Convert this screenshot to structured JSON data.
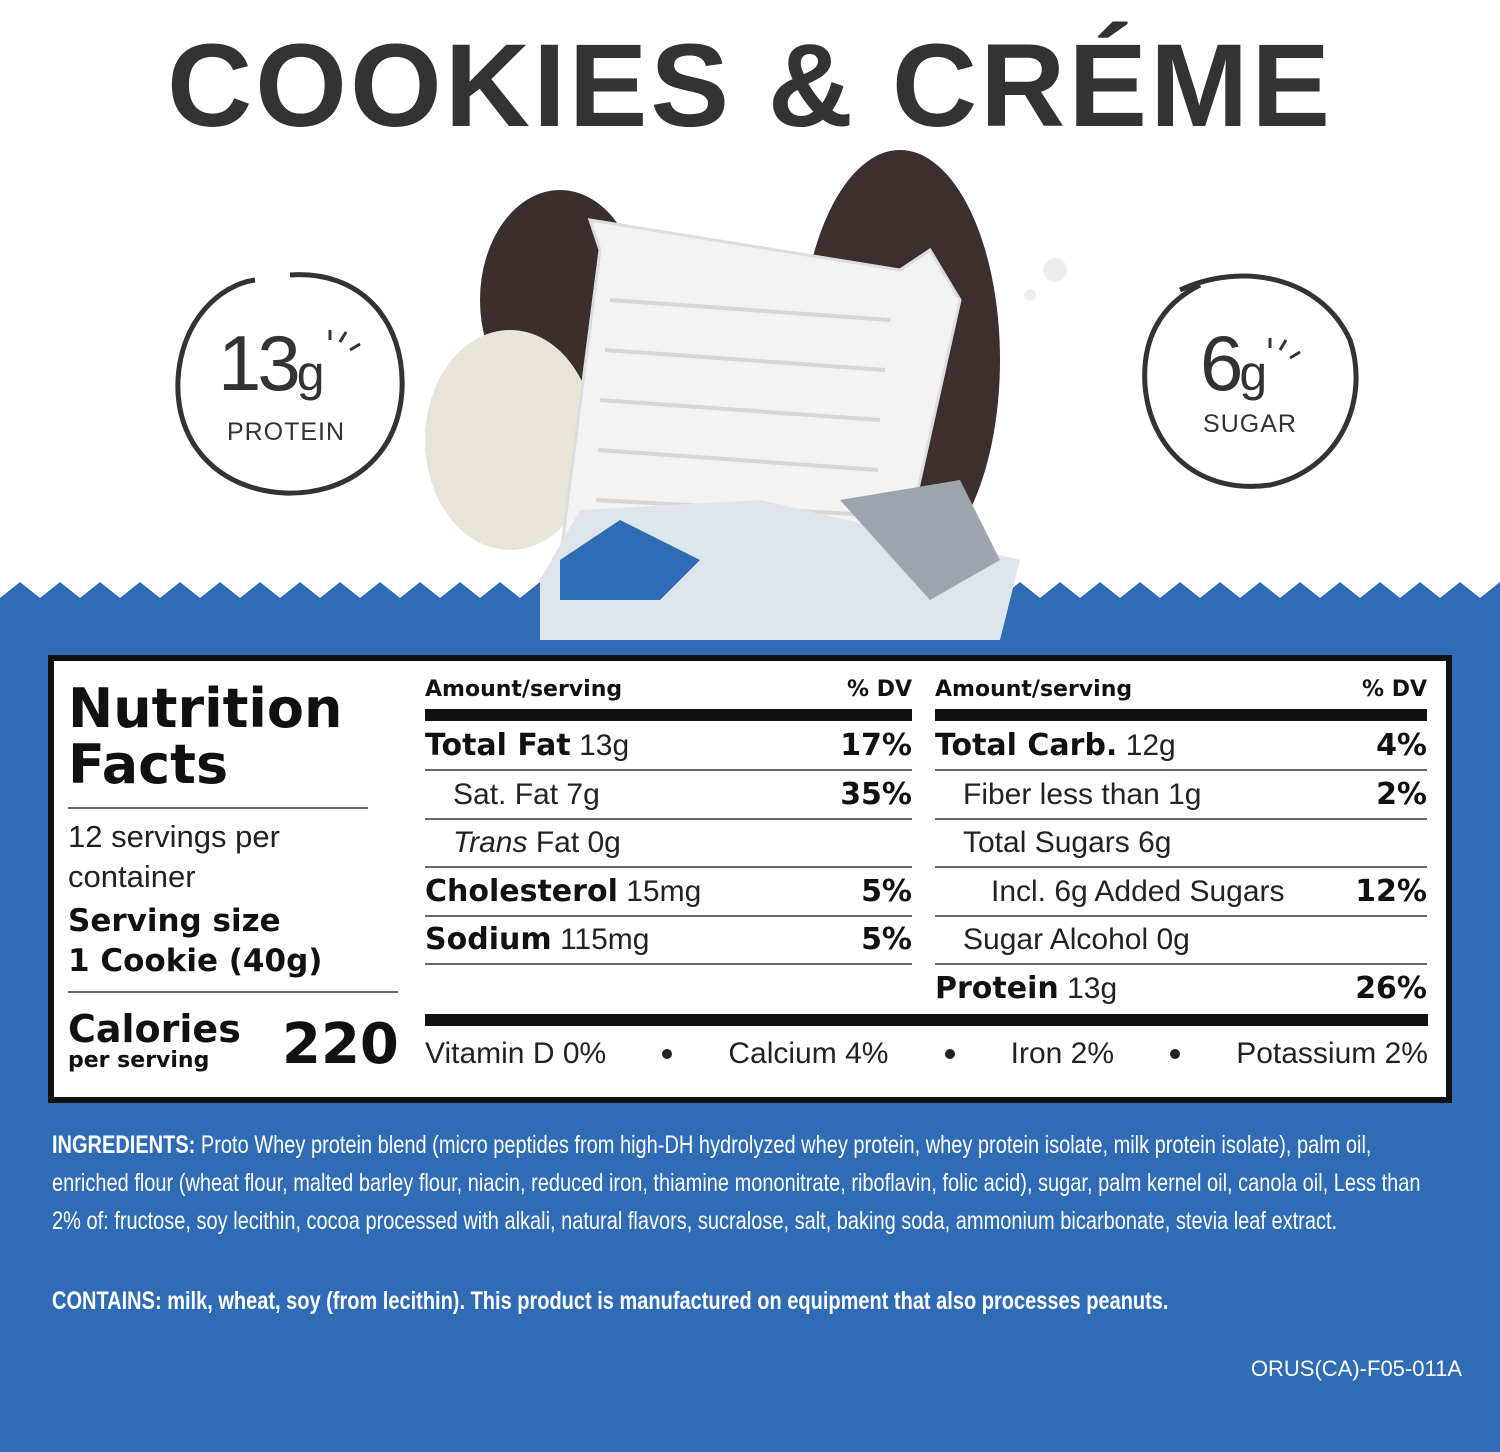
{
  "title": "COOKIES & CRÉME",
  "badges": [
    {
      "amount": "13",
      "unit": "g",
      "label": "PROTEIN"
    },
    {
      "amount": "6",
      "unit": "g",
      "label": "SUGAR"
    }
  ],
  "nutrition_facts": {
    "heading": "Nutrition Facts",
    "servings": "12 servings per container",
    "serving_size_label": "Serving size",
    "serving_size": "1 Cookie (40g)",
    "calories_label": "Calories",
    "calories_sublabel": "per serving",
    "calories": "220",
    "columns": [
      {
        "amount_header": "Amount/serving",
        "dv_header": "% DV",
        "rows": [
          {
            "name": "Total Fat",
            "amount": "13g",
            "dv": "17%",
            "bold": true,
            "indent": 0
          },
          {
            "name": "Sat. Fat",
            "amount": "7g",
            "dv": "35%",
            "bold": false,
            "indent": 1
          },
          {
            "name": "Trans",
            "amount": "Fat 0g",
            "bold": false,
            "italic": true,
            "indent": 1
          },
          {
            "name": "Cholesterol",
            "amount": "15mg",
            "dv": "5%",
            "bold": true,
            "indent": 0
          },
          {
            "name": "Sodium",
            "amount": "115mg",
            "dv": "5%",
            "bold": true,
            "indent": 0
          }
        ]
      },
      {
        "amount_header": "Amount/serving",
        "dv_header": "% DV",
        "rows": [
          {
            "name": "Total Carb.",
            "amount": "12g",
            "dv": "4%",
            "bold": true,
            "indent": 0
          },
          {
            "name": "Fiber less than",
            "amount": "1g",
            "dv": "2%",
            "bold": false,
            "indent": 1
          },
          {
            "name": "Total Sugars",
            "amount": "6g",
            "bold": false,
            "indent": 1
          },
          {
            "name": "Incl. 6g Added Sugars",
            "dv": "12%",
            "bold": false,
            "indent": 2
          },
          {
            "name": "Sugar Alcohol",
            "amount": "0g",
            "bold": false,
            "indent": 1
          },
          {
            "name": "Protein",
            "amount": "13g",
            "dv": "26%",
            "bold": true,
            "indent": 0
          }
        ]
      }
    ],
    "vitamins": [
      "Vitamin D 0%",
      "Calcium 4%",
      "Iron 2%",
      "Potassium 2%"
    ]
  },
  "ingredients": {
    "label": "INGREDIENTS:",
    "text": "Proto Whey protein blend (micro peptides from high-DH hydrolyzed whey protein, whey protein isolate, milk protein isolate), palm oil, enriched flour (wheat flour, malted barley flour, niacin, reduced iron, thiamine mononitrate, riboflavin, folic acid), sugar, palm kernel oil, canola oil, Less than 2% of: fructose, soy lecithin, cocoa processed with alkali, natural flavors, sucralose, salt, baking soda, ammonium bicarbonate, stevia leaf extract."
  },
  "contains": {
    "label": "CONTAINS:",
    "text": "milk, wheat, soy (from lecithin). This product is manufactured on equipment that also processes peanuts."
  },
  "code": "ORUS(CA)-F05-011A"
}
